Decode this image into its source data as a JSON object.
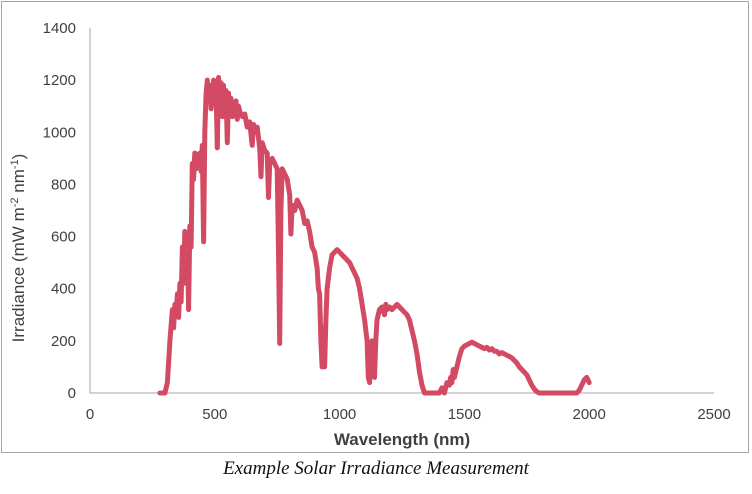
{
  "caption": "Example Solar Irradiance Measurement",
  "colors": {
    "series": "#d24a63",
    "axis": "#a6a6a6",
    "text": "#404040"
  },
  "chart_data": {
    "type": "line",
    "title": "",
    "xlabel": "Wavelength (nm)",
    "ylabel_parts": {
      "main": "Irradiance (mW m",
      "sup1": "-2",
      "mid": " nm",
      "sup2": "-1",
      "end": ")"
    },
    "xlim": [
      0,
      2500
    ],
    "ylim": [
      0,
      1400
    ],
    "xticks": [
      "0",
      "500",
      "1000",
      "1500",
      "2000",
      "2500"
    ],
    "yticks": [
      "0",
      "200",
      "400",
      "600",
      "800",
      "1000",
      "1200",
      "1400"
    ],
    "grid": false,
    "legend": "none",
    "series": [
      {
        "points": [
          [
            280,
            0
          ],
          [
            300,
            0
          ],
          [
            310,
            40
          ],
          [
            320,
            200
          ],
          [
            330,
            320
          ],
          [
            335,
            250
          ],
          [
            340,
            340
          ],
          [
            345,
            300
          ],
          [
            350,
            380
          ],
          [
            355,
            290
          ],
          [
            360,
            420
          ],
          [
            365,
            350
          ],
          [
            370,
            560
          ],
          [
            375,
            420
          ],
          [
            380,
            620
          ],
          [
            385,
            440
          ],
          [
            390,
            600
          ],
          [
            395,
            320
          ],
          [
            400,
            640
          ],
          [
            405,
            560
          ],
          [
            410,
            880
          ],
          [
            415,
            820
          ],
          [
            420,
            920
          ],
          [
            425,
            860
          ],
          [
            430,
            900
          ],
          [
            440,
            920
          ],
          [
            445,
            850
          ],
          [
            450,
            950
          ],
          [
            455,
            580
          ],
          [
            460,
            1000
          ],
          [
            465,
            1150
          ],
          [
            470,
            1200
          ],
          [
            475,
            1120
          ],
          [
            480,
            1180
          ],
          [
            485,
            1090
          ],
          [
            490,
            1150
          ],
          [
            495,
            1200
          ],
          [
            500,
            1120
          ],
          [
            505,
            1180
          ],
          [
            510,
            940
          ],
          [
            515,
            1210
          ],
          [
            520,
            1150
          ],
          [
            525,
            1190
          ],
          [
            530,
            1060
          ],
          [
            535,
            1180
          ],
          [
            540,
            1100
          ],
          [
            545,
            1160
          ],
          [
            550,
            960
          ],
          [
            555,
            1150
          ],
          [
            560,
            1090
          ],
          [
            565,
            1130
          ],
          [
            570,
            1060
          ],
          [
            575,
            1110
          ],
          [
            580,
            1080
          ],
          [
            585,
            1120
          ],
          [
            590,
            1050
          ],
          [
            595,
            1100
          ],
          [
            600,
            1080
          ],
          [
            610,
            1060
          ],
          [
            620,
            1070
          ],
          [
            630,
            1020
          ],
          [
            640,
            1040
          ],
          [
            650,
            950
          ],
          [
            655,
            1030
          ],
          [
            660,
            1000
          ],
          [
            670,
            1020
          ],
          [
            680,
            940
          ],
          [
            685,
            830
          ],
          [
            690,
            960
          ],
          [
            700,
            930
          ],
          [
            710,
            920
          ],
          [
            715,
            750
          ],
          [
            720,
            880
          ],
          [
            730,
            900
          ],
          [
            740,
            880
          ],
          [
            750,
            860
          ],
          [
            755,
            570
          ],
          [
            760,
            190
          ],
          [
            765,
            700
          ],
          [
            770,
            860
          ],
          [
            780,
            840
          ],
          [
            790,
            820
          ],
          [
            800,
            760
          ],
          [
            805,
            610
          ],
          [
            810,
            720
          ],
          [
            820,
            700
          ],
          [
            830,
            740
          ],
          [
            840,
            720
          ],
          [
            850,
            700
          ],
          [
            860,
            650
          ],
          [
            870,
            660
          ],
          [
            880,
            620
          ],
          [
            890,
            560
          ],
          [
            900,
            540
          ],
          [
            910,
            480
          ],
          [
            915,
            400
          ],
          [
            920,
            380
          ],
          [
            925,
            200
          ],
          [
            930,
            100
          ],
          [
            935,
            250
          ],
          [
            940,
            100
          ],
          [
            945,
            280
          ],
          [
            950,
            400
          ],
          [
            960,
            480
          ],
          [
            970,
            530
          ],
          [
            980,
            540
          ],
          [
            990,
            550
          ],
          [
            1000,
            540
          ],
          [
            1010,
            530
          ],
          [
            1020,
            520
          ],
          [
            1030,
            510
          ],
          [
            1040,
            500
          ],
          [
            1050,
            480
          ],
          [
            1060,
            460
          ],
          [
            1070,
            440
          ],
          [
            1080,
            400
          ],
          [
            1090,
            340
          ],
          [
            1100,
            280
          ],
          [
            1110,
            200
          ],
          [
            1115,
            60
          ],
          [
            1120,
            40
          ],
          [
            1125,
            180
          ],
          [
            1130,
            200
          ],
          [
            1135,
            120
          ],
          [
            1140,
            60
          ],
          [
            1145,
            200
          ],
          [
            1150,
            280
          ],
          [
            1160,
            320
          ],
          [
            1170,
            330
          ],
          [
            1180,
            300
          ],
          [
            1185,
            340
          ],
          [
            1190,
            320
          ],
          [
            1200,
            330
          ],
          [
            1210,
            320
          ],
          [
            1220,
            330
          ],
          [
            1230,
            340
          ],
          [
            1240,
            330
          ],
          [
            1250,
            320
          ],
          [
            1260,
            310
          ],
          [
            1270,
            300
          ],
          [
            1280,
            280
          ],
          [
            1290,
            240
          ],
          [
            1300,
            200
          ],
          [
            1310,
            150
          ],
          [
            1320,
            80
          ],
          [
            1330,
            30
          ],
          [
            1340,
            0
          ],
          [
            1360,
            0
          ],
          [
            1380,
            0
          ],
          [
            1400,
            0
          ],
          [
            1410,
            20
          ],
          [
            1420,
            0
          ],
          [
            1430,
            40
          ],
          [
            1440,
            30
          ],
          [
            1445,
            60
          ],
          [
            1450,
            40
          ],
          [
            1455,
            90
          ],
          [
            1460,
            60
          ],
          [
            1470,
            100
          ],
          [
            1480,
            140
          ],
          [
            1490,
            170
          ],
          [
            1500,
            180
          ],
          [
            1510,
            185
          ],
          [
            1520,
            190
          ],
          [
            1530,
            195
          ],
          [
            1540,
            190
          ],
          [
            1550,
            185
          ],
          [
            1560,
            180
          ],
          [
            1570,
            175
          ],
          [
            1580,
            170
          ],
          [
            1590,
            175
          ],
          [
            1600,
            165
          ],
          [
            1610,
            170
          ],
          [
            1620,
            160
          ],
          [
            1630,
            160
          ],
          [
            1640,
            150
          ],
          [
            1650,
            155
          ],
          [
            1660,
            150
          ],
          [
            1670,
            145
          ],
          [
            1680,
            140
          ],
          [
            1690,
            135
          ],
          [
            1700,
            125
          ],
          [
            1710,
            115
          ],
          [
            1720,
            100
          ],
          [
            1730,
            90
          ],
          [
            1740,
            80
          ],
          [
            1750,
            70
          ],
          [
            1760,
            50
          ],
          [
            1770,
            30
          ],
          [
            1780,
            15
          ],
          [
            1790,
            5
          ],
          [
            1800,
            0
          ],
          [
            1850,
            0
          ],
          [
            1900,
            0
          ],
          [
            1950,
            0
          ],
          [
            1960,
            10
          ],
          [
            1970,
            30
          ],
          [
            1980,
            50
          ],
          [
            1990,
            60
          ],
          [
            2000,
            40
          ]
        ]
      }
    ]
  }
}
